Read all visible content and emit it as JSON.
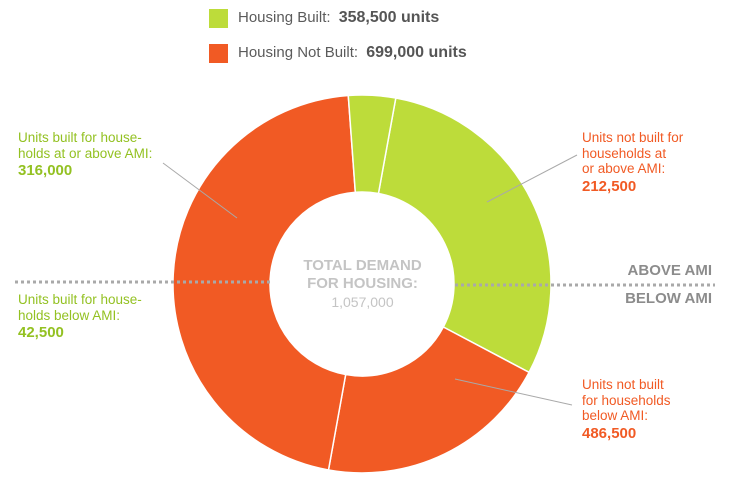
{
  "legend": {
    "built": {
      "label": "Housing Built:",
      "value": "358,500 units",
      "color": "#bddc3a"
    },
    "not_built": {
      "label": "Housing Not Built:",
      "value": "699,000 units",
      "color": "#f15a24"
    }
  },
  "center": {
    "line1": "TOTAL DEMAND",
    "line2": "FOR HOUSING:",
    "value": "1,057,000"
  },
  "ami": {
    "above": "ABOVE AMI",
    "below": "BELOW AMI"
  },
  "annotations": {
    "built_above": {
      "line1": "Units built for house-",
      "line2": "holds at or above AMI:",
      "value": "316,000"
    },
    "built_below": {
      "line1": "Units built for house-",
      "line2": "holds below AMI:",
      "value": "42,500"
    },
    "not_built_above": {
      "line1": "Units not built for",
      "line2": "households at",
      "line3": "or above AMI:",
      "value": "212,500"
    },
    "not_built_below": {
      "line1": "Units not built",
      "line2": "for households",
      "line3": "below AMI:",
      "value": "486,500"
    }
  },
  "chart_data": {
    "type": "pie",
    "donut": true,
    "slices": [
      {
        "label": "Units built for households at or above AMI",
        "value": 316000,
        "color": "#bddc3a"
      },
      {
        "label": "Units not built for households at or above AMI",
        "value": 212500,
        "color": "#f15a24"
      },
      {
        "label": "Units not built for households below AMI",
        "value": 486500,
        "color": "#f15a24"
      },
      {
        "label": "Units built for households below AMI",
        "value": 42500,
        "color": "#bddc3a"
      }
    ],
    "series": [
      {
        "name": "Housing Built",
        "value": 358500
      },
      {
        "name": "Housing Not Built",
        "value": 699000
      }
    ],
    "total": 1057000
  }
}
